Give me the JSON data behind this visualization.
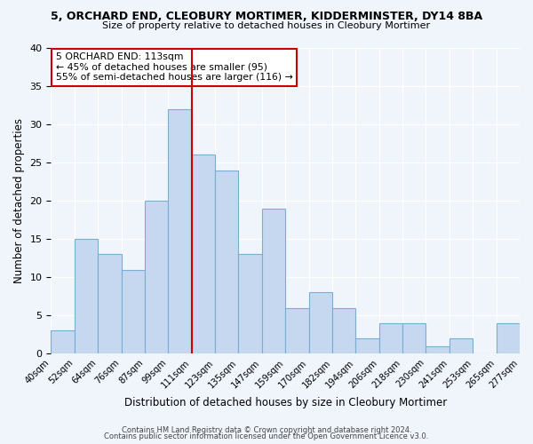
{
  "title1": "5, ORCHARD END, CLEOBURY MORTIMER, KIDDERMINSTER, DY14 8BA",
  "title2": "Size of property relative to detached houses in Cleobury Mortimer",
  "xlabel": "Distribution of detached houses by size in Cleobury Mortimer",
  "ylabel": "Number of detached properties",
  "bin_labels": [
    "40sqm",
    "52sqm",
    "64sqm",
    "76sqm",
    "87sqm",
    "99sqm",
    "111sqm",
    "123sqm",
    "135sqm",
    "147sqm",
    "159sqm",
    "170sqm",
    "182sqm",
    "194sqm",
    "206sqm",
    "218sqm",
    "230sqm",
    "241sqm",
    "253sqm",
    "265sqm",
    "277sqm"
  ],
  "bar_heights": [
    3,
    15,
    13,
    11,
    20,
    32,
    26,
    24,
    13,
    19,
    6,
    8,
    6,
    2,
    4,
    4,
    1,
    2,
    0,
    4
  ],
  "bar_color": "#c5d8f0",
  "bar_edge_color": "#7badd4",
  "vline_color": "#cc0000",
  "annotation_title": "5 ORCHARD END: 113sqm",
  "annotation_line1": "← 45% of detached houses are smaller (95)",
  "annotation_line2": "55% of semi-detached houses are larger (116) →",
  "annotation_box_color": "#ffffff",
  "annotation_box_edge": "#cc0000",
  "ylim": [
    0,
    40
  ],
  "yticks": [
    0,
    5,
    10,
    15,
    20,
    25,
    30,
    35,
    40
  ],
  "footer1": "Contains HM Land Registry data © Crown copyright and database right 2024.",
  "footer2": "Contains public sector information licensed under the Open Government Licence v3.0.",
  "bg_color": "#f0f4fb",
  "grid_color": "#ffffff"
}
